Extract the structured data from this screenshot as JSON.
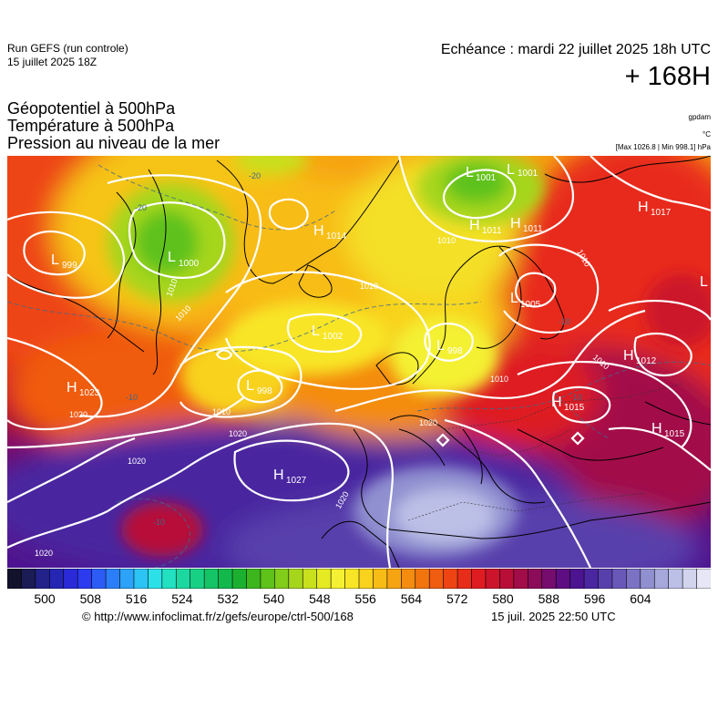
{
  "header": {
    "run_line1": "Run GEFS (run controle)",
    "run_line2": "15 juillet 2025 18Z",
    "echeance": "Echéance : mardi 22 juillet 2025 18h UTC",
    "lead": "+ 168H"
  },
  "fields": {
    "line1": "Géopotentiel à 500hPa",
    "line2": "Température à 500hPa",
    "line3": "Pression au niveau de la mer"
  },
  "units": {
    "gpdam": "gpdam",
    "celsius": "°C",
    "pressure": "[Max 1026.8 | Min 998.1] hPa"
  },
  "centers": [
    {
      "kind": "L",
      "value": "999"
    },
    {
      "kind": "L",
      "value": "1000"
    },
    {
      "kind": "H",
      "value": "1014"
    },
    {
      "kind": "L",
      "value": "1001"
    },
    {
      "kind": "L",
      "value": "1001"
    },
    {
      "kind": "H",
      "value": "1011"
    },
    {
      "kind": "H",
      "value": "1011"
    },
    {
      "kind": "H",
      "value": "1017"
    },
    {
      "kind": "L",
      "value": "1005"
    },
    {
      "kind": "L",
      "value": "1002"
    },
    {
      "kind": "L",
      "value": "998"
    },
    {
      "kind": "L",
      "value": "998"
    },
    {
      "kind": "H",
      "value": "1023"
    },
    {
      "kind": "H",
      "value": "1012"
    },
    {
      "kind": "H",
      "value": "1015"
    },
    {
      "kind": "H",
      "value": "1015"
    },
    {
      "kind": "H",
      "value": "1027"
    },
    {
      "kind": "L",
      "value": ""
    }
  ],
  "isobar_labels": [
    "1010",
    "1010",
    "1010",
    "1010",
    "1010",
    "1010",
    "1010",
    "1010",
    "1020",
    "1020",
    "1020",
    "1020",
    "1020",
    "1020"
  ],
  "temp_labels": [
    "-20",
    "-20",
    "-10",
    "-10",
    "-10",
    "-10"
  ],
  "scale": {
    "colors": [
      "#12122c",
      "#1b1b55",
      "#22228a",
      "#2626b5",
      "#2a2ad8",
      "#2c3af0",
      "#2c5cf5",
      "#2c7ef8",
      "#2ca2f8",
      "#2cc4f4",
      "#2ce0e8",
      "#22e0c0",
      "#1cd8a0",
      "#18d084",
      "#14c466",
      "#12b84c",
      "#1cb030",
      "#3cb61c",
      "#5ec21a",
      "#82cc1a",
      "#a6d61c",
      "#c8e01e",
      "#e6ea22",
      "#f4f032",
      "#f8e626",
      "#f8d21c",
      "#f8bc16",
      "#f6a412",
      "#f48c10",
      "#f2740e",
      "#f05c10",
      "#ee4414",
      "#e82c1a",
      "#de1c22",
      "#cc142c",
      "#b80e38",
      "#a20c48",
      "#8c0c5a",
      "#760c6e",
      "#5e0e82",
      "#4c1490",
      "#4a26a0",
      "#5840ac",
      "#6a58b8",
      "#7c72c4",
      "#9090d0",
      "#a6a8dc",
      "#bcbfe6",
      "#d2d4ee",
      "#e6e6f6"
    ],
    "ticks": [
      "500",
      "508",
      "516",
      "524",
      "532",
      "540",
      "548",
      "556",
      "564",
      "572",
      "580",
      "588",
      "596",
      "604"
    ]
  },
  "footer": {
    "url": "© http://www.infoclimat.fr/z/gefs/europe/ctrl-500/168",
    "timestamp": "15 juil. 2025 22:50 UTC"
  }
}
